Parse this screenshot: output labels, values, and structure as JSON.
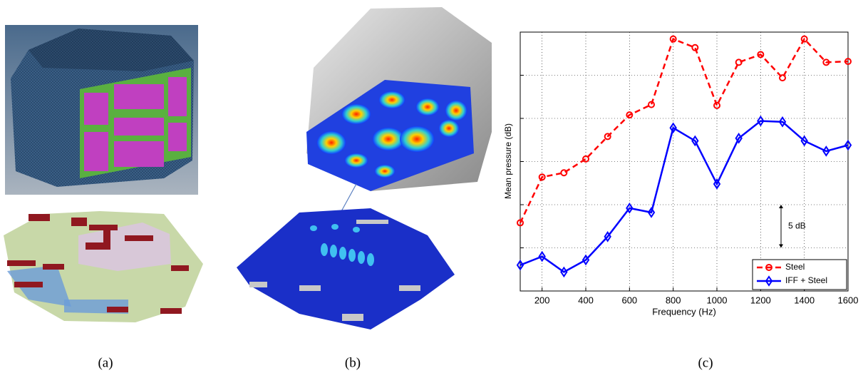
{
  "chart_data": {
    "type": "line",
    "x_label": "Frequency (Hz)",
    "y_label": "Mean pressure (dB)",
    "x": [
      100,
      200,
      300,
      400,
      500,
      600,
      700,
      800,
      900,
      1000,
      1100,
      1200,
      1300,
      1400,
      1500,
      1600
    ],
    "series": [
      {
        "name": "Steel",
        "color": "#ff0000",
        "linestyle": "dashed",
        "marker": "circle",
        "values": [
          7.9,
          13.2,
          13.7,
          15.3,
          17.9,
          20.4,
          21.6,
          29.2,
          28.2,
          21.5,
          26.5,
          27.4,
          24.7,
          29.2,
          26.5,
          26.6
        ]
      },
      {
        "name": "IFF + Steel",
        "color": "#0000ff",
        "linestyle": "solid",
        "marker": "diamond",
        "values": [
          3.0,
          4.0,
          2.2,
          3.6,
          6.3,
          9.6,
          9.1,
          18.9,
          17.4,
          12.4,
          17.7,
          19.7,
          19.6,
          17.4,
          16.2,
          16.9
        ]
      }
    ],
    "xlim": [
      100,
      1600
    ],
    "xticks": [
      200,
      400,
      600,
      800,
      1000,
      1200,
      1400,
      1600
    ],
    "ylim": [
      0,
      30
    ],
    "yticks": [
      5,
      10,
      15,
      20,
      25
    ],
    "grid": true,
    "legend": "lower right",
    "annotation": {
      "text": "5 dB",
      "span": 5
    }
  },
  "captions": [
    "(a)",
    "(b)",
    "(c)"
  ]
}
